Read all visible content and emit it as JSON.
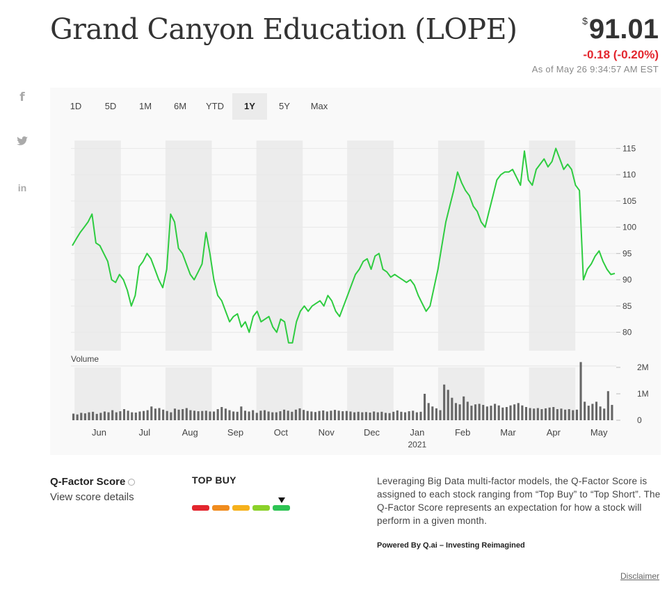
{
  "header": {
    "title": "Grand Canyon Education (LOPE)",
    "currency_symbol": "$",
    "price": "91.01",
    "change": "-0.18 (-0.20%)",
    "as_of": "As of May 26 9:34:57 AM EST"
  },
  "social": [
    {
      "icon": "facebook-icon",
      "glyph": "f"
    },
    {
      "icon": "twitter-icon",
      "glyph": "bird"
    },
    {
      "icon": "linkedin-icon",
      "glyph": "in"
    }
  ],
  "tabs": [
    {
      "label": "1D",
      "active": false
    },
    {
      "label": "5D",
      "active": false
    },
    {
      "label": "1M",
      "active": false
    },
    {
      "label": "6M",
      "active": false
    },
    {
      "label": "YTD",
      "active": false
    },
    {
      "label": "1Y",
      "active": true
    },
    {
      "label": "5Y",
      "active": false
    },
    {
      "label": "Max",
      "active": false
    }
  ],
  "colors": {
    "line": "#2ecc40",
    "volume": "#666666",
    "band": "#ececec",
    "grid": "#e8e8e8",
    "negative": "#e3262e"
  },
  "chart_data": {
    "type": "line",
    "price_axis": {
      "ticks": [
        80,
        85,
        90,
        95,
        100,
        105,
        110,
        115
      ],
      "ylim": [
        76.5,
        116.5
      ]
    },
    "volume_label": "Volume",
    "volume_axis": {
      "ticks": [
        0,
        1000000,
        2000000
      ],
      "tick_labels": [
        "0",
        "1M",
        "2M"
      ],
      "ylim": [
        0,
        2000000
      ]
    },
    "month_labels": [
      "Jun",
      "Jul",
      "Aug",
      "Sep",
      "Oct",
      "Nov",
      "Dec",
      "Jan",
      "Feb",
      "Mar",
      "Apr",
      "May"
    ],
    "year_label": "2021",
    "year_under": "Jan",
    "shaded_months": [
      "Jun",
      "Aug",
      "Oct",
      "Dec",
      "Feb",
      "Apr"
    ],
    "series": [
      {
        "values": [
          96.5,
          97.8,
          99.0,
          100.0,
          101.0,
          102.5,
          97.0,
          96.5,
          95.0,
          93.5,
          90.0,
          89.5,
          91.0,
          90.0,
          88.0,
          85.0,
          87.0,
          92.5,
          93.5,
          95.0,
          94.0,
          92.0,
          90.0,
          88.5,
          92.0,
          102.5,
          101.0,
          96.0,
          95.0,
          93.0,
          91.0,
          90.0,
          91.5,
          93.0,
          99.0,
          95.0,
          90.0,
          87.0,
          86.0,
          84.0,
          82.0,
          83.0,
          83.5,
          81.0,
          82.0,
          80.0,
          83.0,
          84.0,
          82.0,
          82.5,
          83.0,
          81.0,
          80.0,
          82.5,
          82.0,
          78.0,
          78.0,
          82.0,
          84.0,
          85.0,
          84.0,
          85.0,
          85.5,
          86.0,
          85.0,
          87.0,
          86.0,
          84.0,
          83.0,
          85.0,
          87.0,
          89.0,
          91.0,
          92.0,
          93.5,
          94.0,
          92.0,
          94.5,
          95.0,
          92.0,
          91.5,
          90.5,
          91.0,
          90.5,
          90.0,
          89.5,
          90.0,
          89.0,
          87.0,
          85.5,
          84.0,
          85.0,
          88.5,
          92.0,
          96.5,
          101.0,
          104.0,
          107.0,
          110.5,
          108.5,
          107.0,
          106.0,
          104.0,
          103.0,
          101.0,
          100.0,
          103.0,
          106.0,
          109.0,
          110.0,
          110.5,
          110.5,
          111.0,
          109.5,
          108.0,
          114.5,
          109.0,
          108.0,
          111.0,
          112.0,
          113.0,
          111.5,
          112.5,
          115.0,
          113.0,
          111.0,
          112.0,
          111.0,
          108.0,
          107.0,
          90.0,
          92.0,
          93.0,
          94.5,
          95.5,
          93.5,
          92.0,
          91.0,
          91.2
        ]
      }
    ],
    "volume": [
      250000,
      220000,
      280000,
      260000,
      300000,
      320000,
      240000,
      280000,
      330000,
      300000,
      380000,
      300000,
      340000,
      420000,
      360000,
      300000,
      290000,
      330000,
      350000,
      380000,
      520000,
      440000,
      460000,
      400000,
      350000,
      300000,
      440000,
      400000,
      420000,
      460000,
      380000,
      360000,
      340000,
      350000,
      360000,
      330000,
      330000,
      420000,
      500000,
      440000,
      380000,
      330000,
      320000,
      520000,
      360000,
      330000,
      380000,
      280000,
      360000,
      380000,
      330000,
      300000,
      300000,
      340000,
      400000,
      360000,
      320000,
      400000,
      450000,
      390000,
      350000,
      330000,
      310000,
      350000,
      370000,
      330000,
      360000,
      390000,
      360000,
      340000,
      350000,
      330000,
      300000,
      320000,
      300000,
      310000,
      290000,
      330000,
      300000,
      320000,
      280000,
      270000,
      320000,
      370000,
      320000,
      300000,
      340000,
      360000,
      300000,
      320000,
      1000000,
      650000,
      520000,
      450000,
      380000,
      1350000,
      1150000,
      850000,
      650000,
      600000,
      900000,
      700000,
      550000,
      600000,
      620000,
      580000,
      520000,
      550000,
      620000,
      560000,
      480000,
      500000,
      560000,
      600000,
      650000,
      560000,
      500000,
      460000,
      440000,
      460000,
      420000,
      450000,
      480000,
      500000,
      420000,
      440000,
      400000,
      420000,
      380000,
      400000,
      2200000,
      700000,
      550000,
      620000,
      700000,
      520000,
      440000,
      1100000,
      580000
    ]
  },
  "qfactor": {
    "title": "Q-Factor Score",
    "link": "View score details",
    "rating": "TOP BUY",
    "segments": [
      "#e3262e",
      "#f08c1e",
      "#f6b11c",
      "#8bd12a",
      "#2ec454"
    ],
    "active_level": 5,
    "levels": 5
  },
  "description": "Leveraging Big Data multi-factor models, the Q-Factor Score is assigned to each stock ranging from “Top Buy” to “Top Short”. The Q-Factor Score represents an expectation for how a stock will perform in a given month.",
  "powered_by": "Powered By Q.ai – Investing Reimagined",
  "disclaimer": "Disclaimer"
}
